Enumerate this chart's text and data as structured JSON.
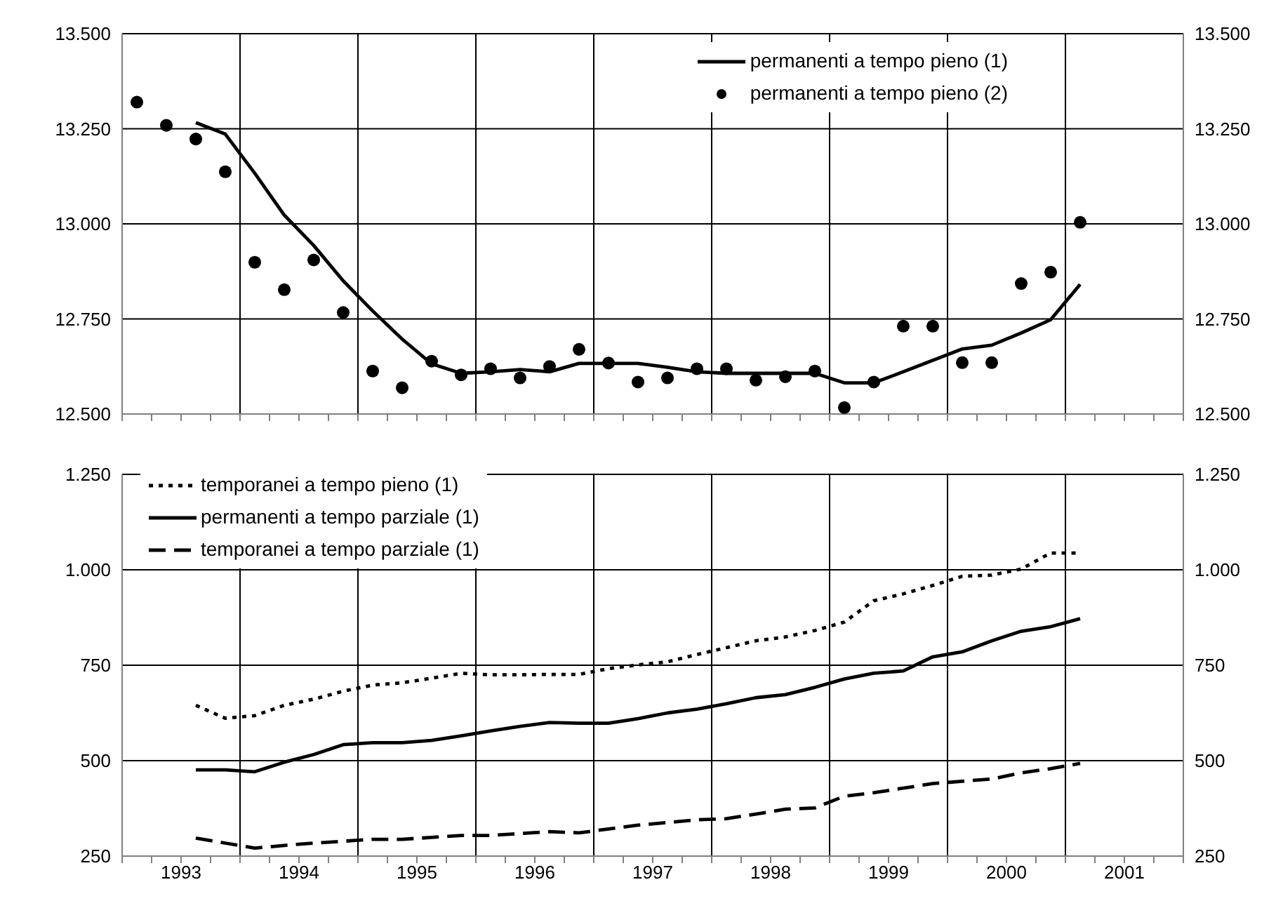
{
  "chart_data": [
    {
      "type": "line",
      "x": [
        1993.125,
        1993.375,
        1993.625,
        1993.875,
        1994.125,
        1994.375,
        1994.625,
        1994.875,
        1995.125,
        1995.375,
        1995.625,
        1995.875,
        1996.125,
        1996.375,
        1996.625,
        1996.875,
        1997.125,
        1997.375,
        1997.625,
        1997.875,
        1998.125,
        1998.375,
        1998.625,
        1998.875,
        1999.125,
        1999.375,
        1999.625,
        1999.875,
        2000.125,
        2000.375,
        2000.625,
        2000.875,
        2001.125
      ],
      "series": [
        {
          "name": "permanenti a tempo pieno (1)",
          "color": "#000000",
          "line_style": "solid",
          "marker": "none",
          "values": [
            null,
            null,
            13266,
            13236,
            13133,
            13023,
            12943,
            12850,
            12771,
            12697,
            12632,
            12607,
            12611,
            12617,
            12611,
            12633,
            12633,
            12633,
            12623,
            12611,
            12607,
            12607,
            12607,
            12607,
            12582,
            12582,
            12611,
            12641,
            12671,
            12681,
            12713,
            12748,
            12841
          ]
        },
        {
          "name": "permanenti a tempo pieno (2)",
          "type": "scatter",
          "color": "#000000",
          "marker": "circle",
          "values": [
            13320,
            13259,
            13223,
            13137,
            12899,
            12827,
            12905,
            12767,
            12613,
            12569,
            12639,
            12603,
            12619,
            12595,
            12625,
            12670,
            12634,
            12584,
            12595,
            12619,
            12619,
            12589,
            12598,
            12613,
            12517,
            12584,
            12731,
            12731,
            12635,
            12635,
            12843,
            12873,
            13004
          ]
        }
      ],
      "xlim": [
        1993,
        2002
      ],
      "xticks": [
        {
          "value": 1993,
          "label": null
        },
        {
          "value": 1993.25,
          "label": null
        },
        {
          "value": 1993.5,
          "label": null
        },
        {
          "value": 1993.75,
          "label": null
        },
        {
          "value": 1994,
          "label": null
        },
        {
          "value": 1994.25,
          "label": null
        },
        {
          "value": 1994.5,
          "label": null
        },
        {
          "value": 1994.75,
          "label": null
        },
        {
          "value": 1995,
          "label": null
        },
        {
          "value": 1995.25,
          "label": null
        },
        {
          "value": 1995.5,
          "label": null
        },
        {
          "value": 1995.75,
          "label": null
        },
        {
          "value": 1996,
          "label": null
        },
        {
          "value": 1996.25,
          "label": null
        },
        {
          "value": 1996.5,
          "label": null
        },
        {
          "value": 1996.75,
          "label": null
        },
        {
          "value": 1997,
          "label": null
        },
        {
          "value": 1997.25,
          "label": null
        },
        {
          "value": 1997.5,
          "label": null
        },
        {
          "value": 1997.75,
          "label": null
        },
        {
          "value": 1998,
          "label": null
        },
        {
          "value": 1998.25,
          "label": null
        },
        {
          "value": 1998.5,
          "label": null
        },
        {
          "value": 1998.75,
          "label": null
        },
        {
          "value": 1999,
          "label": null
        },
        {
          "value": 1999.25,
          "label": null
        },
        {
          "value": 1999.5,
          "label": null
        },
        {
          "value": 1999.75,
          "label": null
        },
        {
          "value": 2000,
          "label": null
        },
        {
          "value": 2000.25,
          "label": null
        },
        {
          "value": 2000.5,
          "label": null
        },
        {
          "value": 2000.75,
          "label": null
        },
        {
          "value": 2001,
          "label": null
        },
        {
          "value": 2001.25,
          "label": null
        },
        {
          "value": 2001.5,
          "label": null
        },
        {
          "value": 2001.75,
          "label": null
        },
        {
          "value": 2002,
          "label": null
        }
      ],
      "ylim": [
        12500,
        13500
      ],
      "yticks": [
        {
          "value": 12500,
          "label": "12.500"
        },
        {
          "value": 12750,
          "label": "12.750"
        },
        {
          "value": 13000,
          "label": "13.000"
        },
        {
          "value": 13250,
          "label": "13.250"
        },
        {
          "value": 13500,
          "label": "13.500"
        }
      ],
      "y2lim": [
        12500,
        13500
      ],
      "y2ticks": [
        {
          "value": 12500,
          "label": "12.500"
        },
        {
          "value": 12750,
          "label": "12.750"
        },
        {
          "value": 13000,
          "label": "13.000"
        },
        {
          "value": 13250,
          "label": "13.250"
        },
        {
          "value": 13500,
          "label": "13.500"
        }
      ],
      "tick_labels": "y",
      "grid": true,
      "legend": "top right"
    },
    {
      "type": "line",
      "x": [
        1993.625,
        1993.875,
        1994.125,
        1994.375,
        1994.625,
        1994.875,
        1995.125,
        1995.375,
        1995.625,
        1995.875,
        1996.125,
        1996.375,
        1996.625,
        1996.875,
        1997.125,
        1997.375,
        1997.625,
        1997.875,
        1998.125,
        1998.375,
        1998.625,
        1998.875,
        1999.125,
        1999.375,
        1999.625,
        1999.875,
        2000.125,
        2000.375,
        2000.625,
        2000.875,
        2001.125
      ],
      "series": [
        {
          "name": "temporanei a tempo pieno (1)",
          "color": "#000000",
          "line_style": "dotted",
          "marker": "none",
          "values": [
            645,
            611,
            618,
            645,
            661,
            682,
            698,
            704,
            716,
            729,
            725,
            725,
            726,
            726,
            741,
            751,
            759,
            778,
            796,
            814,
            824,
            841,
            863,
            919,
            937,
            959,
            983,
            986,
            1002,
            1044,
            1044
          ]
        },
        {
          "name": "permanenti a tempo parziale (1)",
          "color": "#000000",
          "line_style": "solid",
          "marker": "none",
          "values": [
            476,
            476,
            471,
            496,
            516,
            542,
            547,
            547,
            553,
            565,
            578,
            590,
            600,
            598,
            598,
            610,
            625,
            635,
            649,
            665,
            673,
            692,
            714,
            729,
            735,
            772,
            785,
            814,
            839,
            851,
            872
          ]
        },
        {
          "name": "temporanei a tempo parziale (1)",
          "color": "#000000",
          "line_style": "dashed",
          "marker": "none",
          "values": [
            297,
            284,
            271,
            278,
            284,
            289,
            294,
            294,
            299,
            304,
            304,
            309,
            314,
            311,
            321,
            331,
            338,
            345,
            348,
            360,
            373,
            376,
            407,
            416,
            428,
            440,
            446,
            452,
            468,
            479,
            493
          ]
        }
      ],
      "xlim": [
        1993,
        2002
      ],
      "xticks": [
        {
          "value": 1993,
          "label": null
        },
        {
          "value": 1993.25,
          "label": null
        },
        {
          "value": 1993.5,
          "label": "1993"
        },
        {
          "value": 1993.75,
          "label": null
        },
        {
          "value": 1994,
          "label": null
        },
        {
          "value": 1994.25,
          "label": null
        },
        {
          "value": 1994.5,
          "label": "1994"
        },
        {
          "value": 1994.75,
          "label": null
        },
        {
          "value": 1995,
          "label": null
        },
        {
          "value": 1995.25,
          "label": null
        },
        {
          "value": 1995.5,
          "label": "1995"
        },
        {
          "value": 1995.75,
          "label": null
        },
        {
          "value": 1996,
          "label": null
        },
        {
          "value": 1996.25,
          "label": null
        },
        {
          "value": 1996.5,
          "label": "1996"
        },
        {
          "value": 1996.75,
          "label": null
        },
        {
          "value": 1997,
          "label": null
        },
        {
          "value": 1997.25,
          "label": null
        },
        {
          "value": 1997.5,
          "label": "1997"
        },
        {
          "value": 1997.75,
          "label": null
        },
        {
          "value": 1998,
          "label": null
        },
        {
          "value": 1998.25,
          "label": null
        },
        {
          "value": 1998.5,
          "label": "1998"
        },
        {
          "value": 1998.75,
          "label": null
        },
        {
          "value": 1999,
          "label": null
        },
        {
          "value": 1999.25,
          "label": null
        },
        {
          "value": 1999.5,
          "label": "1999"
        },
        {
          "value": 1999.75,
          "label": null
        },
        {
          "value": 2000,
          "label": null
        },
        {
          "value": 2000.25,
          "label": null
        },
        {
          "value": 2000.5,
          "label": "2000"
        },
        {
          "value": 2000.75,
          "label": null
        },
        {
          "value": 2001,
          "label": null
        },
        {
          "value": 2001.25,
          "label": null
        },
        {
          "value": 2001.5,
          "label": "2001"
        },
        {
          "value": 2001.75,
          "label": null
        },
        {
          "value": 2002,
          "label": null
        }
      ],
      "ylim": [
        250,
        1250
      ],
      "yticks": [
        {
          "value": 250,
          "label": "250"
        },
        {
          "value": 500,
          "label": "500"
        },
        {
          "value": 750,
          "label": "750"
        },
        {
          "value": 1000,
          "label": "1.000"
        },
        {
          "value": 1250,
          "label": "1.250"
        }
      ],
      "y2lim": [
        250,
        1250
      ],
      "y2ticks": [
        {
          "value": 250,
          "label": "250"
        },
        {
          "value": 500,
          "label": "500"
        },
        {
          "value": 750,
          "label": "750"
        },
        {
          "value": 1000,
          "label": "1.000"
        },
        {
          "value": 1250,
          "label": "1.250"
        }
      ],
      "grid": true,
      "legend": "top left"
    }
  ]
}
